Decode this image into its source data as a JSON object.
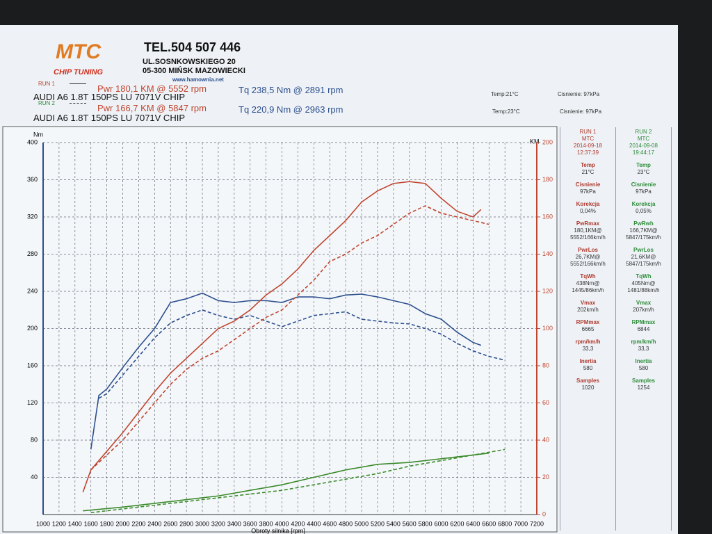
{
  "header": {
    "logo": "MTC",
    "logo_sub": "CHIP TUNING",
    "phone": "TEL.504 507 446",
    "street": "UL.SOSNKOWSKIEGO 20",
    "city": "05-300 MIŃSK MAZOWIECKI",
    "web": "www.hamownia.net",
    "runs": [
      {
        "label": "RUN 1",
        "pwr": "Pwr 180,1 KM @ 5552 rpm",
        "tq": "Tq 238,5 Nm @ 2891 rpm",
        "car": "AUDI A6 1.8T 150PS LU 7071V CHIP",
        "temp": "Temp:21°C",
        "press": "Cisnienie: 97kPa"
      },
      {
        "label": "RUN 2",
        "pwr": "Pwr 166,7 KM @ 5847 rpm",
        "tq": "Tq 220,9 Nm @ 2963 rpm",
        "car": "AUDI A6 1.8T 150PS LU 7071V CHIP",
        "temp": "Temp:23°C",
        "press": "Cisnienie: 97kPa"
      }
    ]
  },
  "panel": {
    "columns": [
      {
        "color": "#b03a2e",
        "header": [
          "RUN 1",
          "MTC",
          "2014-09-18",
          "12:37:39"
        ],
        "items": [
          [
            "Temp",
            "21°C"
          ],
          [
            "Cisnienie",
            "97kPa"
          ],
          [
            "Korekcja",
            "0,04%"
          ],
          [
            "PwRmax",
            "180,1KM@",
            "5552/166km/h"
          ],
          [
            "PwrLos",
            "26,7KM@",
            "5552/166km/h"
          ],
          [
            "TqWh",
            "438Nm@",
            "1445/86km/h"
          ],
          [
            "Vmax",
            "202km/h"
          ],
          [
            "RPMmax",
            "6665"
          ],
          [
            "rpm/km/h",
            "33,3"
          ],
          [
            "Inertia",
            "580"
          ],
          [
            "Samples",
            "1020"
          ]
        ]
      },
      {
        "color": "#2e8b3a",
        "header": [
          "RUN 2",
          "MTC",
          "2014-09-08",
          "19:44:17"
        ],
        "items": [
          [
            "Temp",
            "23°C"
          ],
          [
            "Cisnienie",
            "97kPa"
          ],
          [
            "Korekcja",
            "0,05%"
          ],
          [
            "PwRwh",
            "166,7KM@",
            "5847/175km/h"
          ],
          [
            "PwrLos",
            "21,6KM@",
            "5847/175km/h"
          ],
          [
            "TqWh",
            "405Nm@",
            "1481/88km/h"
          ],
          [
            "Vmax",
            "207km/h"
          ],
          [
            "RPMmax",
            "6844"
          ],
          [
            "rpm/km/h",
            "33,3"
          ],
          [
            "Inertia",
            "580"
          ],
          [
            "Samples",
            "1254"
          ]
        ]
      }
    ]
  },
  "chart_data": {
    "type": "line",
    "y_label": "Nm",
    "y2_label": "KM",
    "x_label": "Obroty silnika [rpm]",
    "grid": true,
    "xlim": [
      1000,
      7200
    ],
    "xticks": [
      1000,
      1200,
      1400,
      1600,
      1800,
      2000,
      2200,
      2400,
      2600,
      2800,
      3000,
      3200,
      3400,
      3600,
      3800,
      4000,
      4200,
      4400,
      4600,
      4800,
      5000,
      5200,
      5400,
      5600,
      5800,
      6000,
      6200,
      6400,
      6600,
      6800,
      7000,
      7200
    ],
    "ylim": [
      0,
      400
    ],
    "yticks": [
      40,
      80,
      120,
      160,
      200,
      240,
      280,
      320,
      360,
      400
    ],
    "y2lim": [
      0,
      200
    ],
    "y2ticks": [
      0,
      20,
      40,
      60,
      80,
      100,
      120,
      140,
      160,
      180,
      200
    ],
    "series": [
      {
        "color": "#2c4f8e",
        "dash": false,
        "x": [
          1600,
          1700,
          1800,
          2000,
          2200,
          2400,
          2600,
          2800,
          3000,
          3200,
          3400,
          3600,
          3800,
          4000,
          4200,
          4400,
          4600,
          4800,
          5000,
          5200,
          5400,
          5600,
          5800,
          6000,
          6200,
          6400,
          6500
        ],
        "values": [
          70,
          128,
          135,
          158,
          180,
          200,
          228,
          232,
          238,
          230,
          228,
          230,
          230,
          228,
          234,
          234,
          232,
          236,
          237,
          234,
          230,
          226,
          216,
          210,
          196,
          185,
          182
        ]
      },
      {
        "color": "#2c4f8e",
        "dash": true,
        "x": [
          1700,
          1800,
          2000,
          2200,
          2400,
          2600,
          2800,
          3000,
          3200,
          3400,
          3600,
          3800,
          4000,
          4200,
          4400,
          4600,
          4800,
          5000,
          5200,
          5400,
          5600,
          5800,
          6000,
          6200,
          6400,
          6600,
          6800
        ],
        "values": [
          125,
          130,
          150,
          170,
          190,
          206,
          214,
          220,
          214,
          210,
          214,
          208,
          202,
          208,
          214,
          216,
          218,
          210,
          208,
          206,
          205,
          200,
          194,
          184,
          176,
          170,
          166
        ]
      },
      {
        "color": "#c0452f",
        "dash": false,
        "axis": "y2",
        "x": [
          1500,
          1600,
          1800,
          2000,
          2200,
          2400,
          2600,
          2800,
          3000,
          3200,
          3400,
          3600,
          3800,
          4000,
          4200,
          4400,
          4600,
          4800,
          5000,
          5200,
          5400,
          5600,
          5800,
          6000,
          6200,
          6400,
          6500
        ],
        "values": [
          12,
          24,
          34,
          44,
          55,
          66,
          76,
          84,
          92,
          100,
          104,
          110,
          118,
          124,
          132,
          142,
          150,
          158,
          168,
          174,
          178,
          179,
          178,
          170,
          163,
          160,
          164
        ]
      },
      {
        "color": "#c0452f",
        "dash": true,
        "axis": "y2",
        "x": [
          1600,
          1800,
          2000,
          2200,
          2400,
          2600,
          2800,
          3000,
          3200,
          3400,
          3600,
          3800,
          4000,
          4200,
          4400,
          4600,
          4800,
          5000,
          5200,
          5400,
          5600,
          5800,
          6000,
          6200,
          6400,
          6600
        ],
        "values": [
          24,
          32,
          40,
          50,
          60,
          70,
          78,
          84,
          88,
          94,
          100,
          106,
          110,
          118,
          126,
          136,
          140,
          146,
          150,
          156,
          162,
          166,
          162,
          160,
          158,
          156
        ]
      },
      {
        "color": "#3a8a2a",
        "dash": false,
        "axis": "y2",
        "x": [
          1500,
          2000,
          2400,
          2800,
          3200,
          3600,
          4000,
          4400,
          4800,
          5200,
          5600,
          6000,
          6400,
          6600
        ],
        "values": [
          2,
          4,
          6,
          8,
          10,
          13,
          16,
          20,
          24,
          27,
          28,
          30,
          32,
          33
        ]
      },
      {
        "color": "#3a8a2a",
        "dash": true,
        "axis": "y2",
        "x": [
          1600,
          2000,
          2400,
          2800,
          3200,
          3600,
          4000,
          4400,
          4800,
          5200,
          5600,
          6000,
          6400,
          6800
        ],
        "values": [
          1,
          3,
          5,
          7,
          9,
          11,
          13,
          16,
          19,
          22,
          26,
          29,
          32,
          35
        ]
      }
    ]
  }
}
